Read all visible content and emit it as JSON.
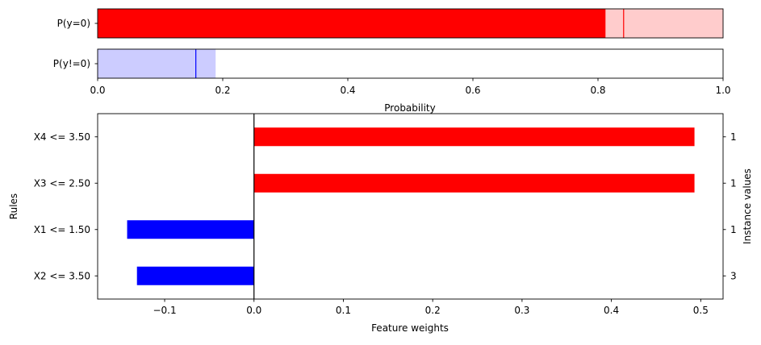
{
  "chart_data": [
    {
      "type": "bar",
      "orientation": "horizontal",
      "xlabel": "Probability",
      "xlim": [
        0,
        1
      ],
      "xticks": [
        "0.0",
        "0.2",
        "0.4",
        "0.6",
        "0.8",
        "1.0"
      ],
      "rows": [
        {
          "label": "P(y=0)",
          "value": 0.812,
          "interval": [
            0.812,
            1.0
          ],
          "marker": 0.841,
          "color": "#ff0000",
          "interval_color": "#ffcccc"
        },
        {
          "label": "P(y!=0)",
          "value": 0.0,
          "interval": [
            0.0,
            0.188
          ],
          "marker": 0.157,
          "color": "#0000ff",
          "interval_color": "#ccccff"
        }
      ]
    },
    {
      "type": "bar",
      "orientation": "horizontal",
      "xlabel": "Feature weights",
      "ylabel": "Rules",
      "y2label": "Instance values",
      "xlim": [
        -0.175,
        0.525
      ],
      "xticks": [
        "−0.1",
        "0.0",
        "0.1",
        "0.2",
        "0.3",
        "0.4",
        "0.5"
      ],
      "categories": [
        "X4 <= 3.50",
        "X3 <= 2.50",
        "X1 <= 1.50",
        "X2 <= 3.50"
      ],
      "values": [
        0.493,
        0.493,
        -0.142,
        -0.131
      ],
      "instance_values": [
        "1",
        "1",
        "1",
        "3"
      ],
      "positive_color": "#ff0000",
      "negative_color": "#0000ff"
    }
  ]
}
